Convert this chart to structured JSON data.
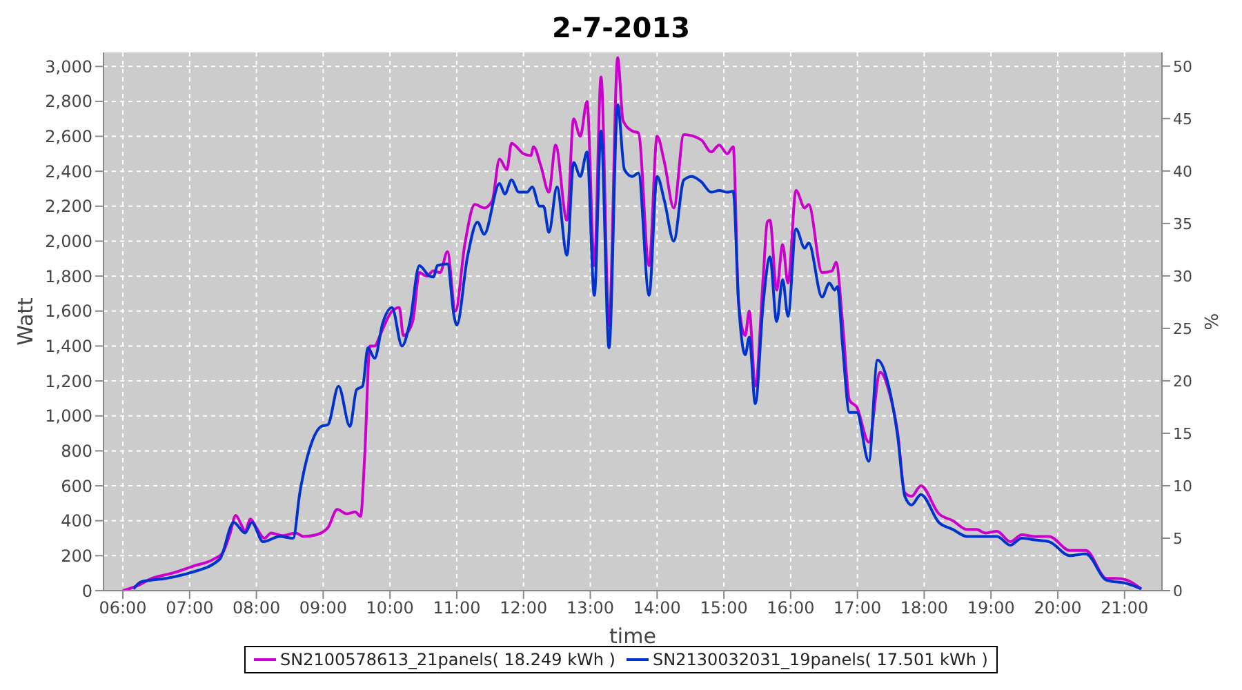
{
  "chart_data": {
    "type": "line",
    "title": "2-7-2013",
    "xlabel": "time",
    "ylabel": "Watt",
    "y2label": "%",
    "xlim": [
      5.71,
      21.56
    ],
    "xticks": [
      {
        "value": 6,
        "label": "06:00"
      },
      {
        "value": 7,
        "label": "07:00"
      },
      {
        "value": 8,
        "label": "08:00"
      },
      {
        "value": 9,
        "label": "09:00"
      },
      {
        "value": 10,
        "label": "10:00"
      },
      {
        "value": 11,
        "label": "11:00"
      },
      {
        "value": 12,
        "label": "12:00"
      },
      {
        "value": 13,
        "label": "13:00"
      },
      {
        "value": 14,
        "label": "14:00"
      },
      {
        "value": 15,
        "label": "15:00"
      },
      {
        "value": 16,
        "label": "16:00"
      },
      {
        "value": 17,
        "label": "17:00"
      },
      {
        "value": 18,
        "label": "18:00"
      },
      {
        "value": 19,
        "label": "19:00"
      },
      {
        "value": 20,
        "label": "20:00"
      },
      {
        "value": 21,
        "label": "21:00"
      }
    ],
    "ylim": [
      0,
      3080
    ],
    "yticks": [
      0,
      200,
      400,
      600,
      800,
      {
        "value": 1000,
        "label": "1,000"
      },
      {
        "value": 1200,
        "label": "1,200"
      },
      {
        "value": 1400,
        "label": "1,400"
      },
      {
        "value": 1600,
        "label": "1,600"
      },
      {
        "value": 1800,
        "label": "1,800"
      },
      {
        "value": 2000,
        "label": "2,000"
      },
      {
        "value": 2200,
        "label": "2,200"
      },
      {
        "value": 2400,
        "label": "2,400"
      },
      {
        "value": 2600,
        "label": "2,600"
      },
      {
        "value": 2800,
        "label": "2,800"
      },
      {
        "value": 3000,
        "label": "3,000"
      }
    ],
    "y2lim": [
      0,
      51.3
    ],
    "y2ticks": [
      0,
      5,
      10,
      15,
      20,
      25,
      30,
      35,
      40,
      45,
      50
    ],
    "grid": true,
    "legend": "bottom",
    "line_style": "solid",
    "series": [
      {
        "name": "SN2100578613_21panels( 18.249 kWh )",
        "color": "#cc00cc",
        "x": [
          6.0,
          6.23,
          6.43,
          6.74,
          7.05,
          7.36,
          7.5,
          7.6,
          7.69,
          7.77,
          7.83,
          7.91,
          8.0,
          8.12,
          8.22,
          8.39,
          8.59,
          8.7,
          8.9,
          9.07,
          9.21,
          9.35,
          9.48,
          9.56,
          9.62,
          9.7,
          9.77,
          9.85,
          9.93,
          10.03,
          10.14,
          10.2,
          10.34,
          10.44,
          10.55,
          10.65,
          10.75,
          10.86,
          10.98,
          11.12,
          11.27,
          11.41,
          11.53,
          11.64,
          11.75,
          11.82,
          12.0,
          12.11,
          12.15,
          12.26,
          12.38,
          12.48,
          12.65,
          12.75,
          12.85,
          12.95,
          13.06,
          13.16,
          13.28,
          13.41,
          13.49,
          13.63,
          13.72,
          13.88,
          14.0,
          14.11,
          14.25,
          14.4,
          14.66,
          14.81,
          14.93,
          15.05,
          15.14,
          15.22,
          15.32,
          15.38,
          15.47,
          15.59,
          15.65,
          15.69,
          15.79,
          15.88,
          15.96,
          16.08,
          16.21,
          16.27,
          16.47,
          16.62,
          16.68,
          16.78,
          16.88,
          16.99,
          17.17,
          17.34,
          17.48,
          17.6,
          17.71,
          17.81,
          17.95,
          18.22,
          18.43,
          18.64,
          18.78,
          18.92,
          19.09,
          19.29,
          19.46,
          19.66,
          19.87,
          20.18,
          20.42,
          20.73,
          20.88,
          21.04,
          21.25
        ],
        "values": [
          0,
          30,
          70,
          100,
          140,
          180,
          220,
          320,
          430,
          380,
          340,
          410,
          360,
          300,
          330,
          315,
          330,
          310,
          320,
          360,
          465,
          440,
          450,
          425,
          760,
          1400,
          1400,
          1460,
          1530,
          1600,
          1620,
          1460,
          1540,
          1820,
          1800,
          1830,
          1820,
          1940,
          1600,
          1980,
          2210,
          2190,
          2230,
          2470,
          2410,
          2560,
          2500,
          2490,
          2540,
          2430,
          2280,
          2550,
          2120,
          2700,
          2600,
          2800,
          1860,
          2940,
          1520,
          3050,
          2690,
          2630,
          2620,
          1860,
          2600,
          2450,
          2190,
          2610,
          2580,
          2510,
          2550,
          2500,
          2540,
          1650,
          1460,
          1600,
          1170,
          1800,
          2110,
          2120,
          1720,
          1980,
          1760,
          2290,
          2190,
          2210,
          1820,
          1830,
          1880,
          1520,
          1090,
          1050,
          850,
          1250,
          1130,
          910,
          560,
          540,
          600,
          440,
          400,
          350,
          350,
          330,
          340,
          280,
          320,
          310,
          310,
          230,
          230,
          70,
          70,
          60,
          10
        ]
      },
      {
        "name": "SN2130032031_19panels( 17.501 kWh )",
        "color": "#0033cc",
        "x": [
          6.16,
          6.27,
          6.64,
          6.99,
          7.45,
          7.66,
          7.83,
          7.93,
          8.1,
          8.35,
          8.55,
          8.65,
          8.84,
          8.97,
          9.07,
          9.23,
          9.4,
          9.5,
          9.59,
          9.67,
          9.77,
          9.89,
          10.03,
          10.18,
          10.3,
          10.44,
          10.59,
          10.65,
          10.71,
          10.86,
          10.96,
          11.0,
          11.16,
          11.31,
          11.41,
          11.64,
          11.72,
          11.82,
          11.93,
          12.05,
          12.13,
          12.24,
          12.3,
          12.38,
          12.5,
          12.65,
          12.75,
          12.85,
          12.95,
          13.06,
          13.16,
          13.28,
          13.41,
          13.51,
          13.63,
          13.72,
          13.88,
          14.0,
          14.11,
          14.25,
          14.4,
          14.52,
          14.66,
          14.81,
          14.93,
          15.05,
          15.14,
          15.22,
          15.32,
          15.38,
          15.47,
          15.59,
          15.69,
          15.79,
          15.88,
          15.96,
          16.08,
          16.21,
          16.27,
          16.47,
          16.58,
          16.66,
          16.7,
          16.78,
          16.88,
          16.99,
          17.17,
          17.3,
          17.48,
          17.6,
          17.71,
          17.81,
          17.95,
          18.22,
          18.43,
          18.64,
          18.78,
          18.92,
          19.09,
          19.29,
          19.46,
          19.66,
          19.87,
          20.18,
          20.42,
          20.73,
          21.04,
          21.25
        ],
        "values": [
          10,
          50,
          70,
          100,
          180,
          390,
          330,
          390,
          280,
          310,
          300,
          560,
          860,
          940,
          950,
          1170,
          940,
          1150,
          1170,
          1390,
          1330,
          1530,
          1620,
          1400,
          1540,
          1860,
          1800,
          1795,
          1860,
          1870,
          1570,
          1520,
          1910,
          2110,
          2040,
          2330,
          2270,
          2350,
          2280,
          2280,
          2310,
          2200,
          2200,
          2050,
          2310,
          1920,
          2450,
          2370,
          2510,
          1690,
          2630,
          1390,
          2780,
          2410,
          2370,
          2390,
          1690,
          2370,
          2230,
          2000,
          2350,
          2370,
          2340,
          2280,
          2290,
          2280,
          2285,
          1650,
          1350,
          1450,
          1070,
          1650,
          1910,
          1540,
          1780,
          1570,
          2070,
          1960,
          1990,
          1680,
          1760,
          1720,
          1740,
          1390,
          1020,
          1020,
          740,
          1320,
          1150,
          890,
          540,
          490,
          550,
          390,
          350,
          310,
          310,
          310,
          310,
          260,
          300,
          290,
          280,
          200,
          210,
          60,
          40,
          10
        ]
      }
    ]
  }
}
